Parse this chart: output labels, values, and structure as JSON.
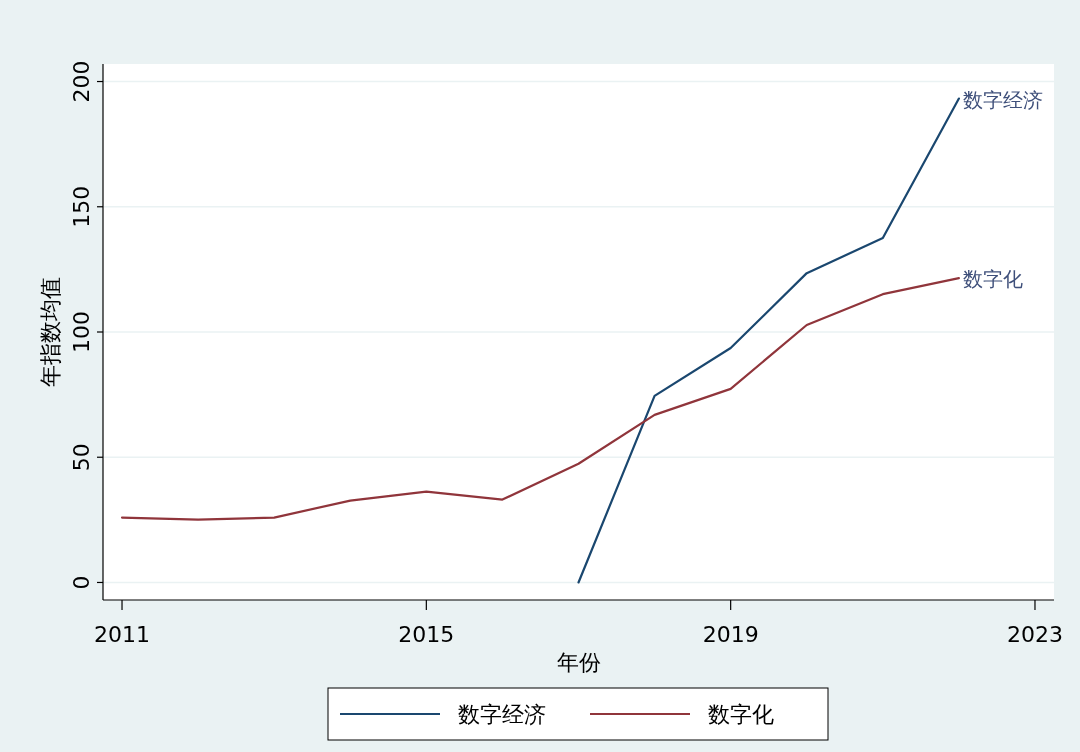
{
  "chart_data": {
    "type": "line",
    "xlabel": "年份",
    "ylabel": "年指数均值",
    "x": [
      2011,
      2012,
      2013,
      2014,
      2015,
      2016,
      2017,
      2018,
      2019,
      2020,
      2021,
      2022
    ],
    "series": [
      {
        "name": "数字经济",
        "color": "#1a476f",
        "values": [
          null,
          null,
          null,
          null,
          null,
          null,
          0,
          74.5,
          93.6,
          123.5,
          137.5,
          193.2
        ]
      },
      {
        "name": "数字化",
        "color": "#90353b",
        "values": [
          25.9,
          25.1,
          25.9,
          32.7,
          36.3,
          33.1,
          47.4,
          66.9,
          77.3,
          102.8,
          115.1,
          121.5
        ]
      }
    ],
    "xlim": [
      2010.75,
      2023.25
    ],
    "xticks": [
      2011,
      2015,
      2019,
      2023
    ],
    "ylim": [
      -7,
      207
    ],
    "yticks": [
      0,
      50,
      100,
      150,
      200
    ],
    "grid": "y",
    "legend": "bottom",
    "marker": "none",
    "line_style": "solid"
  }
}
